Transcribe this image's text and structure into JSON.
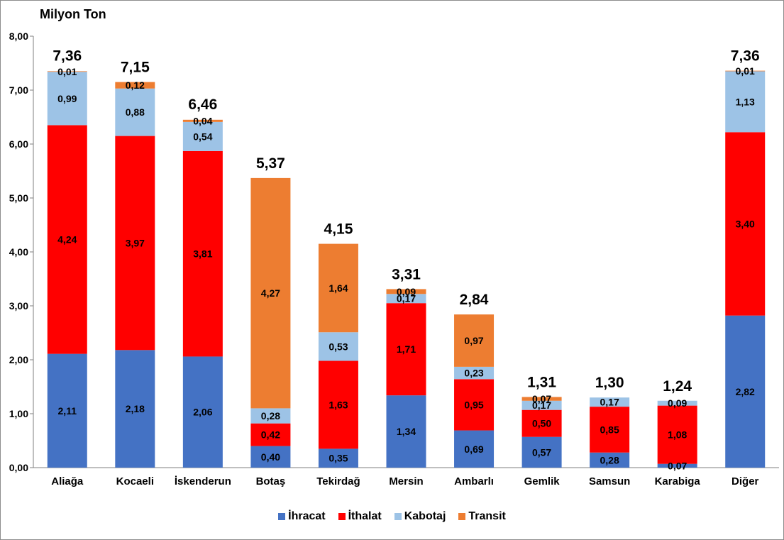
{
  "chart_data": {
    "type": "bar",
    "stacked": true,
    "unit_label": "Milyon Ton",
    "categories": [
      "Aliağa",
      "Kocaeli",
      "İskenderun",
      "Botaş",
      "Tekirdağ",
      "Mersin",
      "Ambarlı",
      "Gemlik",
      "Samsun",
      "Karabiga",
      "Diğer"
    ],
    "series": [
      {
        "name": "İhracat",
        "color": "#4472c4",
        "values": [
          2.11,
          2.18,
          2.06,
          0.4,
          0.35,
          1.34,
          0.69,
          0.57,
          0.28,
          0.07,
          2.82
        ],
        "labels": [
          "2,11",
          "2,18",
          "2,06",
          "0,40",
          "0,35",
          "1,34",
          "0,69",
          "0,57",
          "0,28",
          "0,07",
          "2,82"
        ]
      },
      {
        "name": "İthalat",
        "color": "#ff0000",
        "values": [
          4.24,
          3.97,
          3.81,
          0.42,
          1.63,
          1.71,
          0.95,
          0.5,
          0.85,
          1.08,
          3.4
        ],
        "labels": [
          "4,24",
          "3,97",
          "3,81",
          "0,42",
          "1,63",
          "1,71",
          "0,95",
          "0,50",
          "0,85",
          "1,08",
          "3,40"
        ]
      },
      {
        "name": "Kabotaj",
        "color": "#9dc3e6",
        "values": [
          0.99,
          0.88,
          0.54,
          0.28,
          0.53,
          0.17,
          0.23,
          0.17,
          0.17,
          0.09,
          1.13
        ],
        "labels": [
          "0,99",
          "0,88",
          "0,54",
          "0,28",
          "0,53",
          "0,17",
          "0,23",
          "0,17",
          "0,17",
          "0,09",
          "1,13"
        ]
      },
      {
        "name": "Transit",
        "color": "#ed7d31",
        "values": [
          0.01,
          0.12,
          0.04,
          4.27,
          1.64,
          0.09,
          0.97,
          0.07,
          0,
          0,
          0.01
        ],
        "labels": [
          "0,01",
          "0,12",
          "0,04",
          "4,27",
          "1,64",
          "0,09",
          "0,97",
          "0,07",
          "",
          "",
          "0,01"
        ]
      }
    ],
    "totals": [
      7.36,
      7.15,
      6.46,
      5.37,
      4.15,
      3.31,
      2.84,
      1.31,
      1.3,
      1.24,
      7.36
    ],
    "total_labels": [
      "7,36",
      "7,15",
      "6,46",
      "5,37",
      "4,15",
      "3,31",
      "2,84",
      "1,31",
      "1,30",
      "1,24",
      "7,36"
    ],
    "ylim": [
      0,
      8
    ],
    "yticks": [
      0,
      1,
      2,
      3,
      4,
      5,
      6,
      7,
      8
    ],
    "ytick_labels": [
      "0,00",
      "1,00",
      "2,00",
      "3,00",
      "4,00",
      "5,00",
      "6,00",
      "7,00",
      "8,00"
    ],
    "grid": false,
    "legend_position": "bottom"
  }
}
